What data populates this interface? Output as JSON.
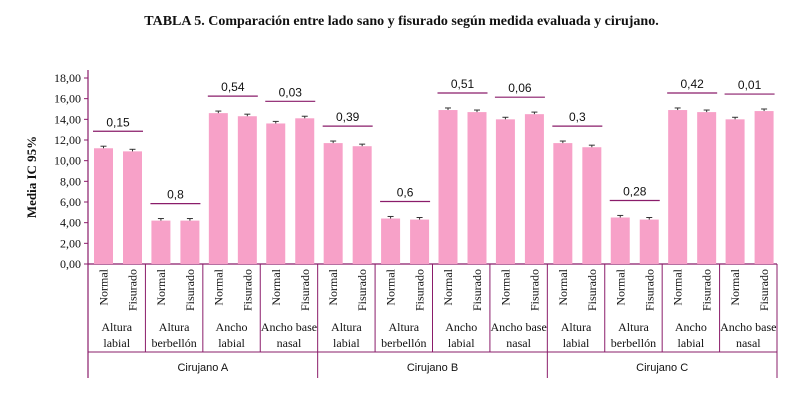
{
  "title": "TABLA 5.  Comparación entre lado sano y fisurado según medida evaluada y cirujano.",
  "colors": {
    "bar": "#f7a1c8",
    "axis": "#8a1c6a",
    "errorbar": "#333333"
  },
  "chart_data": {
    "type": "bar",
    "title": "TABLA 5.  Comparación entre lado sano y fisurado según medida evaluada y cirujano.",
    "ylabel": "Media IC 95%",
    "ylim": [
      0,
      18
    ],
    "yticks": [
      "0,00",
      "2,00",
      "4,00",
      "6,00",
      "8,00",
      "10,00",
      "12,00",
      "14,00",
      "16,00",
      "18,00"
    ],
    "grid": false,
    "bar_labels": [
      "Normal",
      "Fisurado"
    ],
    "groups": [
      {
        "surgeon": "Cirujano A",
        "measure": [
          "Altura",
          "labial"
        ],
        "values": [
          11.2,
          10.9
        ],
        "p": "0,15"
      },
      {
        "surgeon": "Cirujano A",
        "measure": [
          "Altura",
          "berbellón"
        ],
        "values": [
          4.2,
          4.2
        ],
        "p": "0,8"
      },
      {
        "surgeon": "Cirujano A",
        "measure": [
          "Ancho",
          "labial"
        ],
        "values": [
          14.6,
          14.3
        ],
        "p": "0,54"
      },
      {
        "surgeon": "Cirujano A",
        "measure": [
          "Ancho base",
          "nasal"
        ],
        "values": [
          13.6,
          14.1
        ],
        "p": "0,03"
      },
      {
        "surgeon": "Cirujano B",
        "measure": [
          "Altura",
          "labial"
        ],
        "values": [
          11.7,
          11.4
        ],
        "p": "0,39"
      },
      {
        "surgeon": "Cirujano B",
        "measure": [
          "Altura",
          "berbellón"
        ],
        "values": [
          4.4,
          4.3
        ],
        "p": "0,6"
      },
      {
        "surgeon": "Cirujano B",
        "measure": [
          "Ancho",
          "labial"
        ],
        "values": [
          14.9,
          14.7
        ],
        "p": "0,51"
      },
      {
        "surgeon": "Cirujano B",
        "measure": [
          "Ancho base",
          "nasal"
        ],
        "values": [
          14.0,
          14.5
        ],
        "p": "0,06"
      },
      {
        "surgeon": "Cirujano C",
        "measure": [
          "Altura",
          "labial"
        ],
        "values": [
          11.7,
          11.3
        ],
        "p": "0,3"
      },
      {
        "surgeon": "Cirujano C",
        "measure": [
          "Altura",
          "berbellón"
        ],
        "values": [
          4.5,
          4.3
        ],
        "p": "0,28"
      },
      {
        "surgeon": "Cirujano C",
        "measure": [
          "Ancho",
          "labial"
        ],
        "values": [
          14.9,
          14.7
        ],
        "p": "0,42"
      },
      {
        "surgeon": "Cirujano C",
        "measure": [
          "Ancho base",
          "nasal"
        ],
        "values": [
          14.0,
          14.8
        ],
        "p": "0,01"
      }
    ],
    "surgeons": [
      "Cirujano A",
      "Cirujano B",
      "Cirujano C"
    ]
  }
}
